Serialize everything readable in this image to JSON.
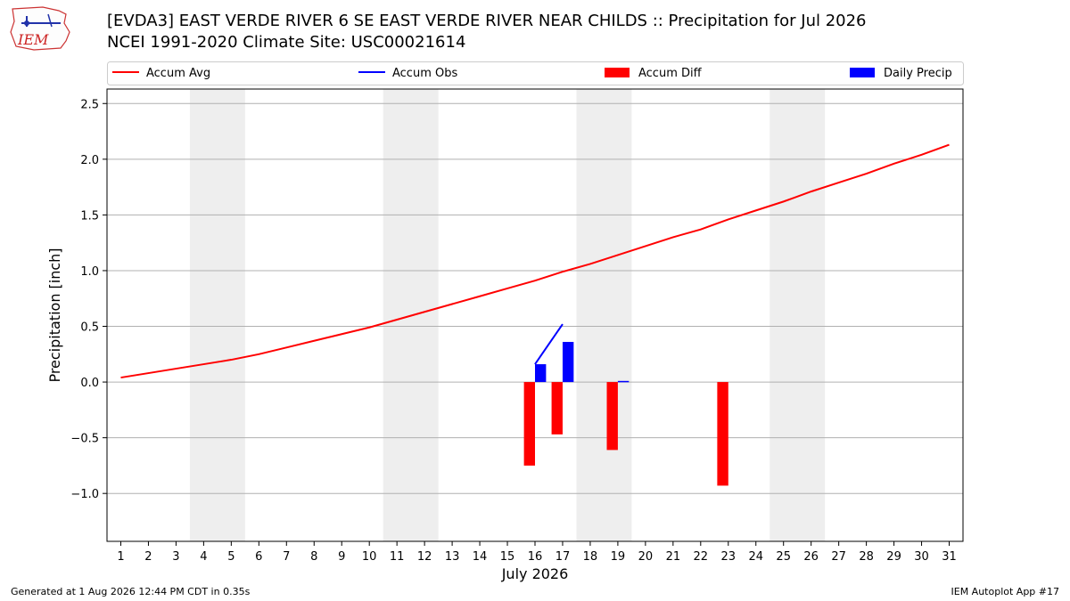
{
  "header": {
    "title_line1": "[EVDA3] EAST VERDE RIVER 6 SE EAST VERDE RIVER NEAR CHILDS :: Precipitation for Jul 2026",
    "title_line2": "NCEI 1991-2020 Climate Site: USC00021614",
    "logo_text": "IEM"
  },
  "footer": {
    "generated": "Generated at 1 Aug 2026 12:44 PM CDT in 0.35s",
    "app": "IEM Autoplot App #17"
  },
  "chart_data": {
    "type": "bar",
    "xlabel": "July 2026",
    "ylabel": "Precipitation [inch]",
    "xlim": [
      0.5,
      31.5
    ],
    "ylim": [
      -1.43,
      2.63
    ],
    "yticks": [
      -1.0,
      -0.5,
      0.0,
      0.5,
      1.0,
      1.5,
      2.0,
      2.5
    ],
    "ytick_labels": [
      "−1.0",
      "−0.5",
      "0.0",
      "0.5",
      "1.0",
      "1.5",
      "2.0",
      "2.5"
    ],
    "days": [
      1,
      2,
      3,
      4,
      5,
      6,
      7,
      8,
      9,
      10,
      11,
      12,
      13,
      14,
      15,
      16,
      17,
      18,
      19,
      20,
      21,
      22,
      23,
      24,
      25,
      26,
      27,
      28,
      29,
      30,
      31
    ],
    "weekend_spans": [
      [
        3.5,
        5.5
      ],
      [
        10.5,
        12.5
      ],
      [
        17.5,
        19.5
      ],
      [
        24.5,
        26.5
      ]
    ],
    "grid": "horizontal",
    "legend_position": "top",
    "legend": [
      {
        "label": "Accum Avg",
        "kind": "line",
        "color": "#ff0000"
      },
      {
        "label": "Accum Obs",
        "kind": "line",
        "color": "#0000ff"
      },
      {
        "label": "Accum Diff",
        "kind": "bar",
        "color": "#ff0000"
      },
      {
        "label": "Daily Precip",
        "kind": "bar",
        "color": "#0000ff"
      }
    ],
    "series": [
      {
        "name": "Accum Avg",
        "type": "line",
        "color": "#ff0000",
        "x": [
          1,
          2,
          3,
          4,
          5,
          6,
          7,
          8,
          9,
          10,
          11,
          12,
          13,
          14,
          15,
          16,
          17,
          18,
          19,
          20,
          21,
          22,
          23,
          24,
          25,
          26,
          27,
          28,
          29,
          30,
          31
        ],
        "values": [
          0.04,
          0.08,
          0.12,
          0.16,
          0.2,
          0.25,
          0.31,
          0.37,
          0.43,
          0.49,
          0.56,
          0.63,
          0.7,
          0.77,
          0.84,
          0.91,
          0.99,
          1.06,
          1.14,
          1.22,
          1.3,
          1.37,
          1.46,
          1.54,
          1.62,
          1.71,
          1.79,
          1.87,
          1.96,
          2.04,
          2.13
        ]
      },
      {
        "name": "Accum Obs",
        "type": "line",
        "color": "#0000ff",
        "x": [
          16,
          17
        ],
        "values": [
          0.16,
          0.52
        ]
      },
      {
        "name": "Accum Diff",
        "type": "bar",
        "color": "#ff0000",
        "x": [
          16,
          17,
          19,
          23
        ],
        "values": [
          -0.75,
          -0.47,
          -0.61,
          -0.93
        ]
      },
      {
        "name": "Daily Precip",
        "type": "bar",
        "color": "#0000ff",
        "x": [
          16,
          17,
          19
        ],
        "values": [
          0.16,
          0.36,
          0.01
        ]
      }
    ]
  }
}
